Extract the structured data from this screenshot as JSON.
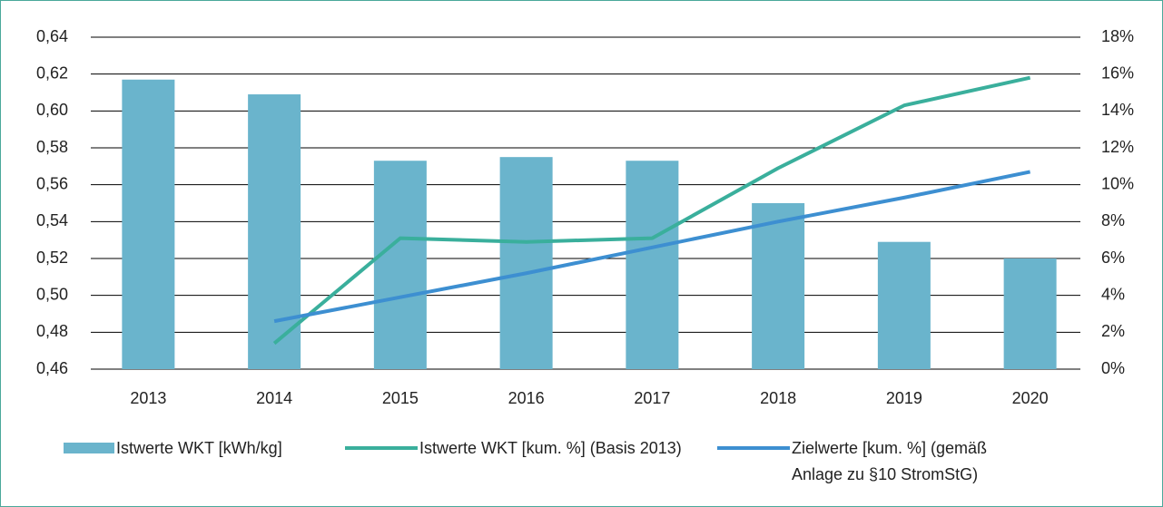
{
  "chart_data": {
    "type": "bar_line",
    "categories": [
      "2013",
      "2014",
      "2015",
      "2016",
      "2017",
      "2018",
      "2019",
      "2020"
    ],
    "series": [
      {
        "name": "Istwerte WKT [kWh/kg]",
        "type": "bar",
        "color": "#6ab4cc",
        "values": [
          0.617,
          0.609,
          0.573,
          0.575,
          0.573,
          0.55,
          0.529,
          0.52
        ]
      },
      {
        "name": "Istwerte WKT [kum. %] (Basis 2013)",
        "type": "line",
        "axis": "y2",
        "color": "#3aaf9c",
        "values": [
          null,
          1.4,
          7.1,
          6.9,
          7.1,
          10.9,
          14.3,
          15.8
        ]
      },
      {
        "name": "Zielwerte [kum. %] (gemäß Anlage zu §10 StromStG)",
        "type": "line",
        "axis": "y2",
        "color": "#3d8fd1",
        "values": [
          null,
          2.6,
          3.9,
          5.2,
          6.6,
          8.0,
          9.3,
          10.7
        ]
      }
    ],
    "ylim": [
      0.46,
      0.64
    ],
    "yticks": [
      {
        "value": 0.46,
        "label": "0,46"
      },
      {
        "value": 0.48,
        "label": "0,48"
      },
      {
        "value": 0.5,
        "label": "0,50"
      },
      {
        "value": 0.52,
        "label": "0,52"
      },
      {
        "value": 0.54,
        "label": "0,54"
      },
      {
        "value": 0.56,
        "label": "0,56"
      },
      {
        "value": 0.58,
        "label": "0,58"
      },
      {
        "value": 0.6,
        "label": "0,60"
      },
      {
        "value": 0.62,
        "label": "0,62"
      },
      {
        "value": 0.64,
        "label": "0,64"
      }
    ],
    "y2lim": [
      0,
      18
    ],
    "y2ticks": [
      {
        "value": 0,
        "label": "0%"
      },
      {
        "value": 2,
        "label": "2%"
      },
      {
        "value": 4,
        "label": "4%"
      },
      {
        "value": 6,
        "label": "6%"
      },
      {
        "value": 8,
        "label": "8%"
      },
      {
        "value": 10,
        "label": "10%"
      },
      {
        "value": 12,
        "label": "12%"
      },
      {
        "value": 14,
        "label": "14%"
      },
      {
        "value": 16,
        "label": "16%"
      },
      {
        "value": 18,
        "label": "18%"
      }
    ],
    "grid": true,
    "legend": "bottom"
  }
}
